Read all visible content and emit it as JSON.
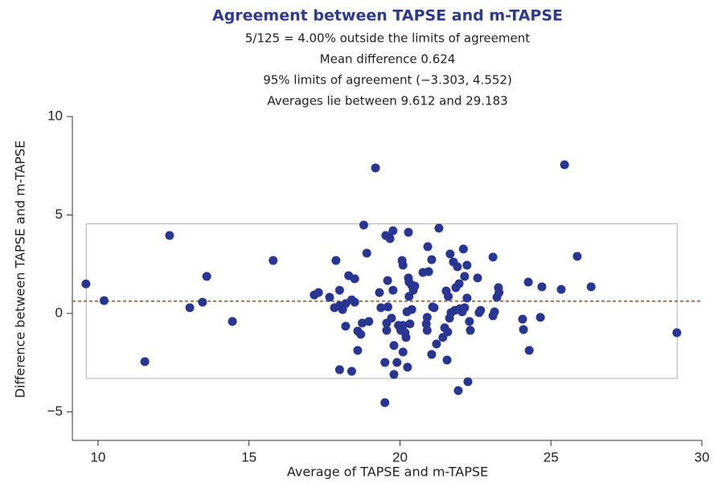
{
  "chart_data": {
    "type": "scatter",
    "title": "Agreement between TAPSE and m-TAPSE",
    "subtitle": [
      "5/125 = 4.00% outside the limits of agreement",
      "Mean difference 0.624",
      "95% limits of agreement (−3.303, 4.552)",
      "Averages lie between 9.612 and 29.183"
    ],
    "x_label": "Average of TAPSE and m-TAPSE",
    "y_label": "Difference between TAPSE and m-TAPSE",
    "mean_difference": 0.624,
    "limits_of_agreement": [
      -3.303,
      4.552
    ],
    "average_range": [
      9.612,
      29.183
    ],
    "color": "#283593",
    "mean_line_color": "#a3714a",
    "limits_color": "#bbbbbb",
    "xlim": [
      9.15,
      30
    ],
    "ylim": [
      -6.45,
      10
    ],
    "xticks": [
      10,
      15,
      20,
      25,
      30
    ],
    "yticks": [
      {
        "value": -5,
        "label": "−5"
      },
      0,
      5,
      10
    ],
    "x": [
      9.6,
      10.2,
      11.55,
      12.37,
      13.04,
      13.46,
      13.6,
      14.45,
      15.8,
      17.16,
      17.3,
      17.67,
      17.88,
      17.83,
      18.0,
      18.0,
      18.0,
      18.1,
      18.2,
      18.2,
      18.3,
      18.4,
      18.4,
      18.5,
      18.5,
      18.6,
      18.6,
      18.7,
      18.75,
      18.8,
      18.9,
      18.97,
      19.19,
      19.32,
      19.37,
      19.5,
      19.5,
      19.53,
      19.56,
      19.56,
      19.59,
      19.6,
      19.67,
      19.72,
      19.77,
      19.77,
      19.8,
      19.8,
      19.9,
      19.95,
      20.03,
      20.07,
      20.1,
      20.1,
      20.1,
      20.17,
      20.2,
      20.23,
      20.25,
      20.28,
      20.28,
      20.3,
      20.3,
      20.33,
      20.39,
      20.39,
      20.44,
      20.49,
      20.76,
      20.87,
      20.9,
      20.9,
      20.92,
      20.95,
      21.05,
      21.05,
      21.08,
      21.13,
      21.21,
      21.29,
      21.42,
      21.48,
      21.53,
      21.56,
      21.58,
      21.6,
      21.64,
      21.66,
      21.69,
      21.77,
      21.82,
      21.85,
      21.9,
      21.93,
      21.96,
      21.98,
      22.06,
      22.1,
      22.14,
      22.14,
      22.22,
      22.25,
      22.22,
      22.3,
      22.33,
      22.57,
      22.62,
      22.67,
      23.08,
      23.08,
      23.13,
      23.21,
      23.26,
      23.28,
      24.06,
      24.09,
      24.25,
      24.28,
      24.65,
      24.7,
      25.34,
      25.45,
      25.87,
      26.33,
      29.17
    ],
    "values": [
      1.5,
      0.65,
      -2.45,
      3.96,
      0.29,
      0.57,
      1.88,
      -0.41,
      2.69,
      0.94,
      1.06,
      0.82,
      2.69,
      0.29,
      0.4,
      1.18,
      -2.86,
      0.2,
      0.5,
      -0.65,
      1.92,
      -2.94,
      0.69,
      0.57,
      1.76,
      -0.9,
      -1.88,
      -1.06,
      -0.49,
      4.49,
      3.06,
      -0.41,
      7.39,
      1.06,
      0.29,
      -2.49,
      -4.53,
      3.96,
      -0.49,
      -0.86,
      1.67,
      0.33,
      3.8,
      -0.24,
      1.18,
      4.2,
      -1.63,
      -3.1,
      -2.49,
      -0.61,
      -0.86,
      2.69,
      2.45,
      -0.61,
      -1.96,
      -0.98,
      -1.22,
      0.08,
      -2.73,
      4.12,
      1.8,
      1.59,
      0.86,
      -0.53,
      1.43,
      0.2,
      1.18,
      1.39,
      2.08,
      -0.53,
      -0.86,
      -0.2,
      3.39,
      2.12,
      2.73,
      -2.08,
      0.33,
      0.29,
      -1.55,
      4.33,
      -1.22,
      -0.73,
      1.14,
      -2.37,
      -0.94,
      0.86,
      -0.24,
      3.02,
      0.04,
      2.61,
      0.16,
      1.31,
      2.37,
      -3.92,
      1.51,
      0.24,
      0.08,
      3.27,
      0.29,
      1.88,
      0.78,
      -3.47,
      2.45,
      -0.41,
      -0.86,
      1.8,
      0.04,
      0.16,
      2.86,
      -0.12,
      0.08,
      0.82,
      1.31,
      1.06,
      -0.29,
      -0.82,
      1.59,
      -1.88,
      -0.2,
      1.35,
      1.22,
      7.55,
      2.9,
      1.35,
      -0.98
    ]
  }
}
